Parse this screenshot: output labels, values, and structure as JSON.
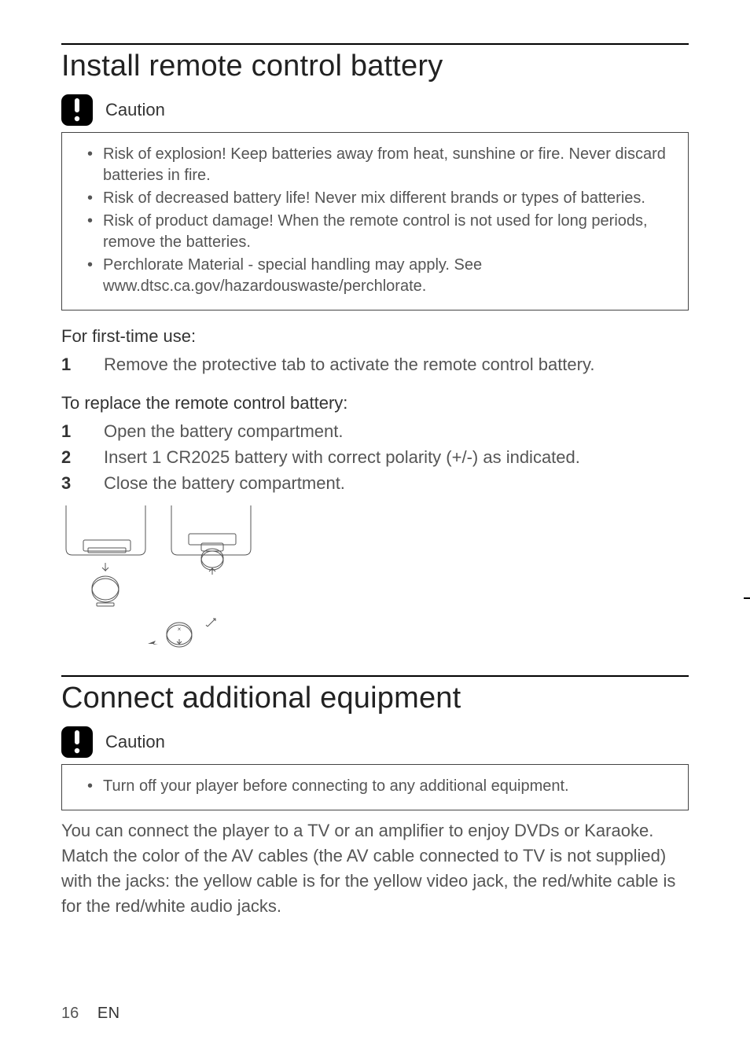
{
  "page": {
    "number": "16",
    "lang": "EN",
    "background_color": "#ffffff",
    "text_color": "#555555",
    "heading_color": "#222222"
  },
  "section1": {
    "title": "Install remote control battery",
    "caution_label": "Caution",
    "caution_items": [
      "Risk of explosion! Keep batteries away from heat, sunshine or fire. Never discard batteries in fire.",
      "Risk of decreased battery life! Never mix different brands or types of batteries.",
      "Risk of product damage! When the remote control is not used for long periods, remove the batteries.",
      "Perchlorate Material - special handling may apply. See www.dtsc.ca.gov/hazardouswaste/perchlorate."
    ],
    "first_use_head": "For first-time use:",
    "first_use_steps": [
      "Remove the protective tab to activate the remote control battery."
    ],
    "replace_head": "To replace the remote control battery:",
    "replace_steps": [
      "Open the battery compartment.",
      "Insert 1 CR2025 battery with correct polarity (+/-) as indicated.",
      "Close the battery compartment."
    ]
  },
  "section2": {
    "title": "Connect additional equipment",
    "caution_label": "Caution",
    "caution_items": [
      "Turn off your player before connecting to any additional equipment."
    ],
    "body": "You can connect the player to a TV or an amplifier to enjoy DVDs or Karaoke.\nMatch the color of the AV cables (the AV cable connected to TV is not supplied) with the jacks: the yellow cable is for the yellow video jack, the red/white cable is for the red/white audio jacks."
  },
  "illustration": {
    "stroke": "#555555",
    "stroke_width": 1
  }
}
